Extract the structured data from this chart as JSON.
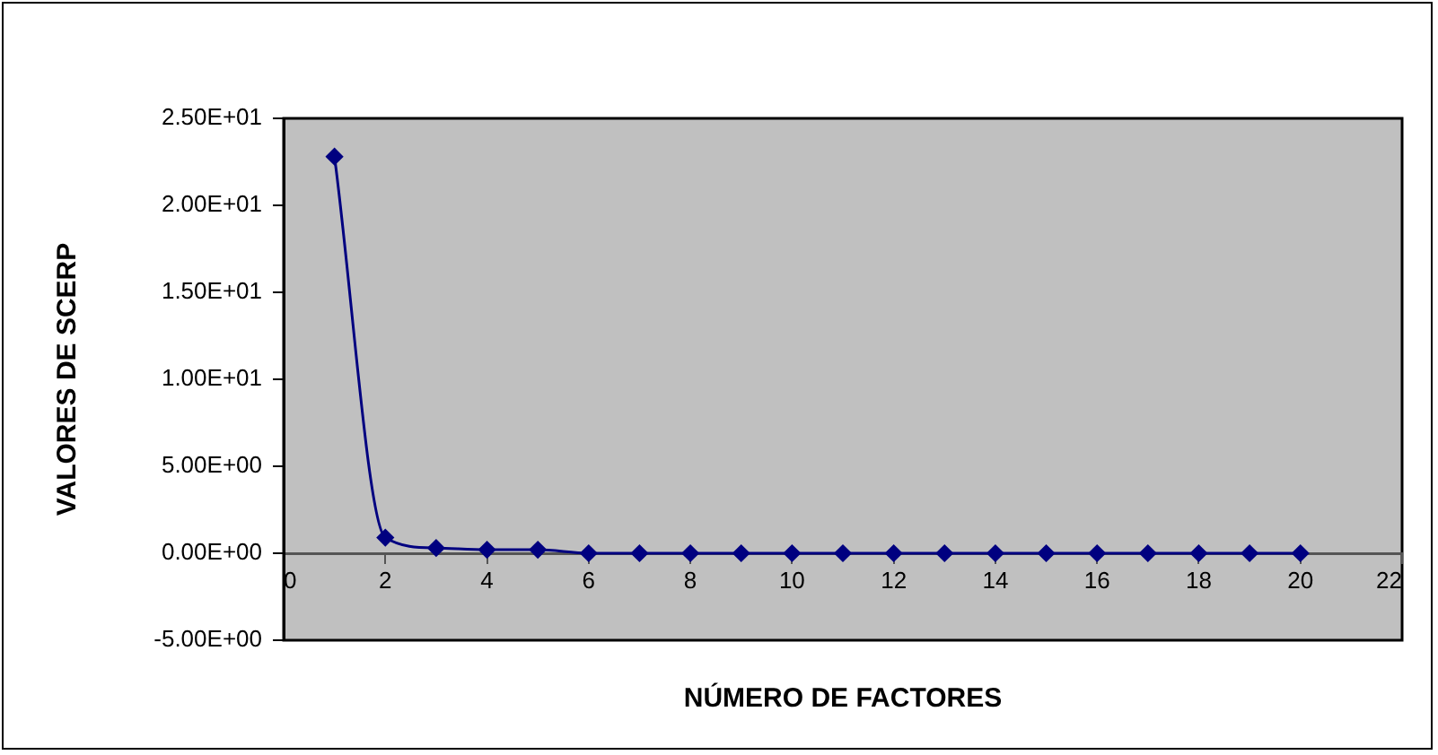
{
  "chart_data": {
    "type": "line",
    "xlabel": "NÚMERO DE FACTORES",
    "ylabel": "VALORES DE SCERP",
    "x": [
      1,
      2,
      3,
      4,
      5,
      6,
      7,
      8,
      9,
      10,
      11,
      12,
      13,
      14,
      15,
      16,
      17,
      18,
      19,
      20
    ],
    "series": [
      {
        "color": "#000080",
        "values": [
          22.8,
          0.9,
          0.3,
          0.2,
          0.2,
          0,
          0,
          0,
          0,
          0,
          0,
          0,
          0,
          0,
          0,
          0,
          0,
          0,
          0,
          0
        ]
      }
    ],
    "xlim": [
      0,
      22
    ],
    "xticks": [
      0,
      2,
      4,
      6,
      8,
      10,
      12,
      14,
      16,
      18,
      20,
      22
    ],
    "ylim": [
      -5,
      25
    ],
    "yticks": [
      {
        "value": -5,
        "label": "-5.00E+00"
      },
      {
        "value": 0,
        "label": "0.00E+00"
      },
      {
        "value": 5,
        "label": "5.00E+00"
      },
      {
        "value": 10,
        "label": "1.00E+01"
      },
      {
        "value": 15,
        "label": "1.50E+01"
      },
      {
        "value": 20,
        "label": "2.00E+01"
      },
      {
        "value": 25,
        "label": "2.50E+01"
      }
    ],
    "grid": false,
    "legend": false,
    "marker": "diamond",
    "line_style": "solid"
  }
}
